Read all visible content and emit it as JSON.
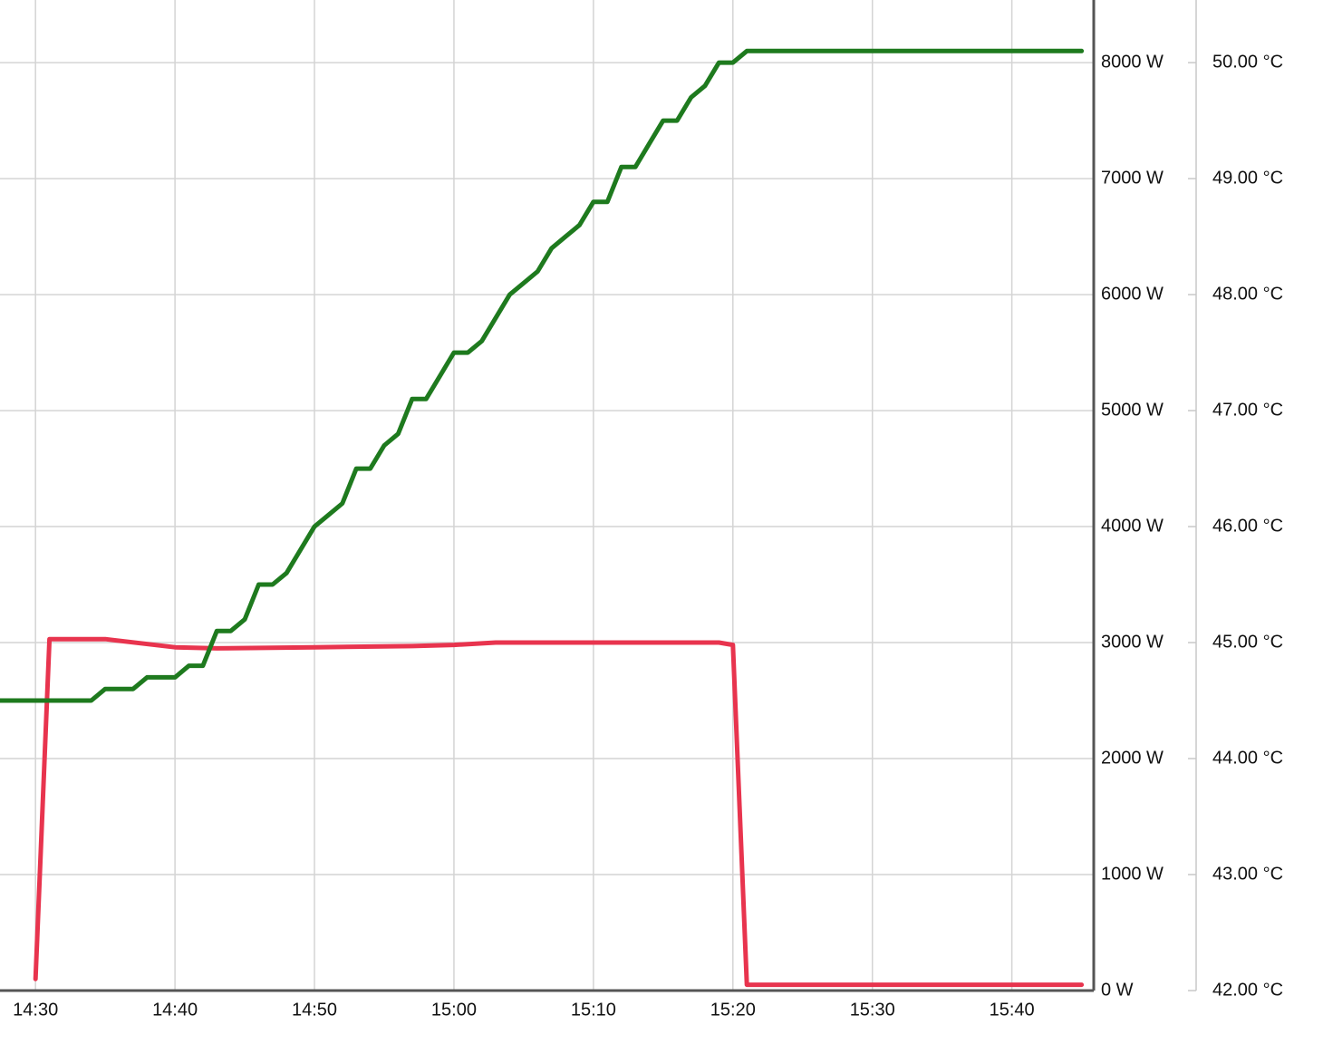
{
  "chart_data": {
    "type": "line",
    "xlim": [
      "14:27",
      "15:46"
    ],
    "xticks": [
      "14:30",
      "14:40",
      "14:50",
      "15:00",
      "15:10",
      "15:20",
      "15:30",
      "15:40"
    ],
    "ylim": [
      0,
      8540
    ],
    "yticks": [
      {
        "value": 0,
        "label": "0 W"
      },
      {
        "value": 1000,
        "label": "1000 W"
      },
      {
        "value": 2000,
        "label": "2000 W"
      },
      {
        "value": 3000,
        "label": "3000 W"
      },
      {
        "value": 4000,
        "label": "4000 W"
      },
      {
        "value": 5000,
        "label": "5000 W"
      },
      {
        "value": 6000,
        "label": "6000 W"
      },
      {
        "value": 7000,
        "label": "7000 W"
      },
      {
        "value": 8000,
        "label": "8000 W"
      }
    ],
    "y2lim": [
      42,
      50.54
    ],
    "y2ticks": [
      {
        "value": 42,
        "label": "42.00 °C"
      },
      {
        "value": 43,
        "label": "43.00 °C"
      },
      {
        "value": 44,
        "label": "44.00 °C"
      },
      {
        "value": 45,
        "label": "45.00 °C"
      },
      {
        "value": 46,
        "label": "46.00 °C"
      },
      {
        "value": 47,
        "label": "47.00 °C"
      },
      {
        "value": 48,
        "label": "48.00 °C"
      },
      {
        "value": 49,
        "label": "49.00 °C"
      },
      {
        "value": 50,
        "label": "50.00 °C"
      }
    ],
    "grid": true,
    "series": [
      {
        "color": "#e8344e",
        "x": [
          "14:30",
          "14:31",
          "14:35",
          "14:40",
          "14:43",
          "14:50",
          "14:57",
          "15:00",
          "15:03",
          "15:19",
          "15:20",
          "15:21",
          "15:45"
        ],
        "values": [
          100,
          3030,
          3030,
          2960,
          2950,
          2960,
          2970,
          2980,
          3000,
          3000,
          2980,
          50,
          50
        ]
      },
      {
        "color": "#1e7a1e",
        "axis": "y2",
        "x": [
          "14:27",
          "14:34",
          "14:35",
          "14:36",
          "14:37",
          "14:38",
          "14:39",
          "14:40",
          "14:41",
          "14:42",
          "14:43",
          "14:44",
          "14:45",
          "14:46",
          "14:47",
          "14:48",
          "14:49",
          "14:50",
          "14:51",
          "14:52",
          "14:53",
          "14:54",
          "14:55",
          "14:56",
          "14:57",
          "14:58",
          "14:59",
          "15:00",
          "15:01",
          "15:02",
          "15:03",
          "15:04",
          "15:05",
          "15:06",
          "15:07",
          "15:08",
          "15:09",
          "15:10",
          "15:11",
          "15:12",
          "15:13",
          "15:14",
          "15:15",
          "15:16",
          "15:17",
          "15:18",
          "15:19",
          "15:20",
          "15:21",
          "15:45"
        ],
        "values": [
          44.5,
          44.5,
          44.6,
          44.6,
          44.6,
          44.7,
          44.7,
          44.7,
          44.8,
          44.8,
          45.1,
          45.1,
          45.2,
          45.5,
          45.5,
          45.6,
          45.8,
          46.0,
          46.1,
          46.2,
          46.5,
          46.5,
          46.7,
          46.8,
          47.1,
          47.1,
          47.3,
          47.5,
          47.5,
          47.6,
          47.8,
          48.0,
          48.1,
          48.2,
          48.4,
          48.5,
          48.6,
          48.8,
          48.8,
          49.1,
          49.1,
          49.3,
          49.5,
          49.5,
          49.7,
          49.8,
          50.0,
          50.0,
          50.1,
          50.1
        ]
      }
    ]
  }
}
